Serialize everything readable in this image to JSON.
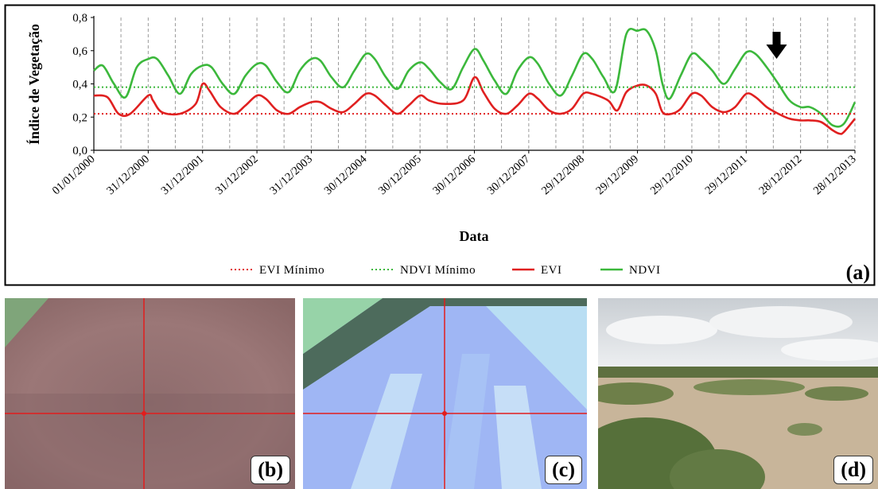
{
  "chart_data": {
    "type": "line",
    "xlabel": "Data",
    "ylabel": "Índice de Vegetação",
    "ylim": [
      0,
      0.8
    ],
    "yticks": [
      "0,0",
      "0,2",
      "0,4",
      "0,6",
      "0,8"
    ],
    "xlim": [
      "2000-01-01",
      "2013-12-28"
    ],
    "xticks": [
      "01/01/2000",
      "31/12/2000",
      "31/12/2001",
      "31/12/2002",
      "31/12/2003",
      "30/12/2004",
      "30/12/2005",
      "30/12/2006",
      "30/12/2007",
      "29/12/2008",
      "29/12/2009",
      "29/12/2010",
      "29/12/2011",
      "28/12/2012",
      "28/12/2013"
    ],
    "grid": "vertical dashed",
    "legend_position": "bottom",
    "panel_label": "(a)",
    "marker": "down-arrow near 2012-07",
    "series": [
      {
        "name": "NDVI",
        "color": "#3cb83c",
        "style": "solid",
        "points": [
          [
            "2000-01-01",
            0.48
          ],
          [
            "2000-03-01",
            0.51
          ],
          [
            "2000-05-15",
            0.4
          ],
          [
            "2000-08-01",
            0.32
          ],
          [
            "2000-10-15",
            0.5
          ],
          [
            "2000-12-31",
            0.55
          ],
          [
            "2001-03-01",
            0.55
          ],
          [
            "2001-05-15",
            0.45
          ],
          [
            "2001-08-01",
            0.34
          ],
          [
            "2001-10-15",
            0.46
          ],
          [
            "2001-12-31",
            0.51
          ],
          [
            "2002-03-01",
            0.5
          ],
          [
            "2002-05-15",
            0.4
          ],
          [
            "2002-08-01",
            0.34
          ],
          [
            "2002-10-15",
            0.45
          ],
          [
            "2002-12-31",
            0.52
          ],
          [
            "2003-03-01",
            0.51
          ],
          [
            "2003-05-15",
            0.41
          ],
          [
            "2003-08-01",
            0.35
          ],
          [
            "2003-10-15",
            0.48
          ],
          [
            "2003-12-31",
            0.55
          ],
          [
            "2004-03-01",
            0.54
          ],
          [
            "2004-05-15",
            0.44
          ],
          [
            "2004-08-01",
            0.38
          ],
          [
            "2004-10-15",
            0.48
          ],
          [
            "2004-12-31",
            0.58
          ],
          [
            "2005-03-01",
            0.55
          ],
          [
            "2005-05-15",
            0.44
          ],
          [
            "2005-08-01",
            0.37
          ],
          [
            "2005-10-15",
            0.48
          ],
          [
            "2005-12-31",
            0.53
          ],
          [
            "2006-03-01",
            0.49
          ],
          [
            "2006-05-15",
            0.41
          ],
          [
            "2006-08-01",
            0.37
          ],
          [
            "2006-10-15",
            0.5
          ],
          [
            "2006-12-31",
            0.61
          ],
          [
            "2007-03-01",
            0.54
          ],
          [
            "2007-05-15",
            0.42
          ],
          [
            "2007-08-01",
            0.34
          ],
          [
            "2007-10-15",
            0.48
          ],
          [
            "2007-12-31",
            0.56
          ],
          [
            "2008-03-01",
            0.52
          ],
          [
            "2008-05-15",
            0.4
          ],
          [
            "2008-08-01",
            0.33
          ],
          [
            "2008-10-15",
            0.45
          ],
          [
            "2008-12-29",
            0.58
          ],
          [
            "2009-03-01",
            0.55
          ],
          [
            "2009-05-15",
            0.44
          ],
          [
            "2009-08-01",
            0.36
          ],
          [
            "2009-10-15",
            0.7
          ],
          [
            "2009-12-29",
            0.72
          ],
          [
            "2010-03-01",
            0.72
          ],
          [
            "2010-05-01",
            0.6
          ],
          [
            "2010-06-15",
            0.4
          ],
          [
            "2010-08-01",
            0.31
          ],
          [
            "2010-10-15",
            0.45
          ],
          [
            "2010-12-29",
            0.58
          ],
          [
            "2011-03-01",
            0.55
          ],
          [
            "2011-05-15",
            0.48
          ],
          [
            "2011-08-01",
            0.4
          ],
          [
            "2011-10-15",
            0.49
          ],
          [
            "2011-12-29",
            0.59
          ],
          [
            "2012-03-01",
            0.58
          ],
          [
            "2012-05-15",
            0.5
          ],
          [
            "2012-08-01",
            0.4
          ],
          [
            "2012-10-15",
            0.3
          ],
          [
            "2012-12-28",
            0.26
          ],
          [
            "2013-03-01",
            0.26
          ],
          [
            "2013-05-15",
            0.22
          ],
          [
            "2013-08-01",
            0.15
          ],
          [
            "2013-10-15",
            0.16
          ],
          [
            "2013-12-28",
            0.29
          ]
        ]
      },
      {
        "name": "EVI",
        "color": "#e02020",
        "style": "solid",
        "points": [
          [
            "2000-01-01",
            0.33
          ],
          [
            "2000-04-01",
            0.32
          ],
          [
            "2000-06-15",
            0.22
          ],
          [
            "2000-09-01",
            0.22
          ],
          [
            "2000-12-31",
            0.33
          ],
          [
            "2001-02-01",
            0.3
          ],
          [
            "2001-04-01",
            0.23
          ],
          [
            "2001-08-01",
            0.22
          ],
          [
            "2001-11-15",
            0.28
          ],
          [
            "2001-12-31",
            0.4
          ],
          [
            "2002-02-15",
            0.36
          ],
          [
            "2002-05-01",
            0.26
          ],
          [
            "2002-08-01",
            0.22
          ],
          [
            "2002-10-15",
            0.27
          ],
          [
            "2002-12-31",
            0.33
          ],
          [
            "2003-03-01",
            0.31
          ],
          [
            "2003-05-15",
            0.24
          ],
          [
            "2003-08-01",
            0.22
          ],
          [
            "2003-10-15",
            0.26
          ],
          [
            "2003-12-31",
            0.29
          ],
          [
            "2004-03-01",
            0.29
          ],
          [
            "2004-05-15",
            0.25
          ],
          [
            "2004-08-01",
            0.23
          ],
          [
            "2004-10-15",
            0.28
          ],
          [
            "2004-12-31",
            0.34
          ],
          [
            "2005-03-01",
            0.33
          ],
          [
            "2005-05-15",
            0.27
          ],
          [
            "2005-08-01",
            0.22
          ],
          [
            "2005-10-15",
            0.27
          ],
          [
            "2005-12-31",
            0.33
          ],
          [
            "2006-03-01",
            0.3
          ],
          [
            "2006-06-01",
            0.28
          ],
          [
            "2006-10-15",
            0.3
          ],
          [
            "2006-12-31",
            0.44
          ],
          [
            "2007-03-01",
            0.35
          ],
          [
            "2007-05-15",
            0.25
          ],
          [
            "2007-08-01",
            0.22
          ],
          [
            "2007-10-15",
            0.27
          ],
          [
            "2007-12-31",
            0.34
          ],
          [
            "2008-03-01",
            0.31
          ],
          [
            "2008-05-15",
            0.24
          ],
          [
            "2008-08-01",
            0.22
          ],
          [
            "2008-10-15",
            0.25
          ],
          [
            "2008-12-29",
            0.34
          ],
          [
            "2009-03-01",
            0.34
          ],
          [
            "2009-06-15",
            0.3
          ],
          [
            "2009-08-15",
            0.24
          ],
          [
            "2009-10-15",
            0.35
          ],
          [
            "2009-12-29",
            0.39
          ],
          [
            "2010-03-01",
            0.39
          ],
          [
            "2010-05-01",
            0.34
          ],
          [
            "2010-06-15",
            0.23
          ],
          [
            "2010-08-15",
            0.22
          ],
          [
            "2010-10-15",
            0.25
          ],
          [
            "2010-12-29",
            0.34
          ],
          [
            "2011-03-01",
            0.33
          ],
          [
            "2011-05-15",
            0.26
          ],
          [
            "2011-08-01",
            0.23
          ],
          [
            "2011-10-15",
            0.26
          ],
          [
            "2011-12-29",
            0.34
          ],
          [
            "2012-03-01",
            0.32
          ],
          [
            "2012-05-15",
            0.26
          ],
          [
            "2012-08-01",
            0.22
          ],
          [
            "2012-10-15",
            0.19
          ],
          [
            "2012-12-28",
            0.18
          ],
          [
            "2013-03-01",
            0.18
          ],
          [
            "2013-05-15",
            0.17
          ],
          [
            "2013-08-01",
            0.12
          ],
          [
            "2013-09-15",
            0.1
          ],
          [
            "2013-10-15",
            0.11
          ],
          [
            "2013-12-28",
            0.19
          ]
        ]
      },
      {
        "name": "EVI Mínimo",
        "color": "#e02020",
        "style": "dotted",
        "value": 0.22
      },
      {
        "name": "NDVI Mínimo",
        "color": "#3cb83c",
        "style": "dotted",
        "value": 0.38
      }
    ]
  },
  "legend": [
    "EVI Mínimo",
    "NDVI Mínimo",
    "EVI",
    "NDVI"
  ],
  "photos": [
    {
      "label": "(b)",
      "kind": "satellite false-color crop with red crosshair",
      "colors": [
        "#9a7575",
        "#8b6869",
        "#7e9a76"
      ]
    },
    {
      "label": "(c)",
      "kind": "satellite false-color crop with red crosshair",
      "colors": [
        "#8fb3f0",
        "#b6d8f2",
        "#5d7a66"
      ]
    },
    {
      "label": "(d)",
      "kind": "field photograph of sparse scrub vegetation",
      "colors": [
        "#dfe3e6",
        "#6f7f4a",
        "#cbb89c"
      ]
    }
  ]
}
